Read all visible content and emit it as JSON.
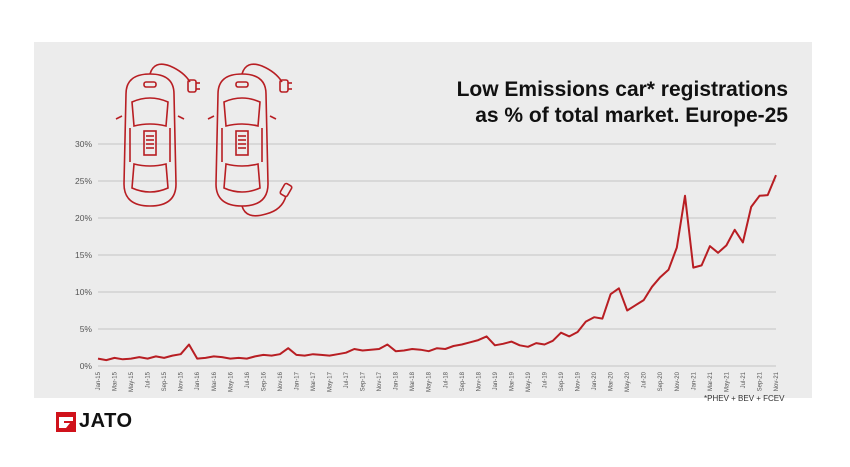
{
  "chart_data": {
    "type": "line",
    "title_line1": "Low Emissions car* registrations",
    "title_line2": "as % of total market. Europe-25",
    "footnote": "*PHEV + BEV + FCEV",
    "ylim": [
      0,
      30
    ],
    "y_ticks": [
      "0%",
      "5%",
      "10%",
      "15%",
      "20%",
      "25%",
      "30%"
    ],
    "grid": true,
    "line_color": "#b81e23",
    "x_tick_labels": [
      "Jan-15",
      "Mar-15",
      "May-15",
      "Jul-15",
      "Sep-15",
      "Nov-15",
      "Jan-16",
      "Mar-16",
      "May-16",
      "Jul-16",
      "Sep-16",
      "Nov-16",
      "Jan-17",
      "Mar-17",
      "May-17",
      "Jul-17",
      "Sep-17",
      "Nov-17",
      "Jan-18",
      "Mar-18",
      "May-18",
      "Jul-18",
      "Sep-18",
      "Nov-18",
      "Jan-19",
      "Mar-19",
      "May-19",
      "Jul-19",
      "Sep-19",
      "Nov-19",
      "Jan-20",
      "Mar-20",
      "May-20",
      "Jul-20",
      "Sep-20",
      "Nov-20",
      "Jan-21",
      "Mar-21",
      "May-21",
      "Jul-21",
      "Sep-21",
      "Nov-21"
    ],
    "x": [
      "Jan-15",
      "Feb-15",
      "Mar-15",
      "Apr-15",
      "May-15",
      "Jun-15",
      "Jul-15",
      "Aug-15",
      "Sep-15",
      "Oct-15",
      "Nov-15",
      "Dec-15",
      "Jan-16",
      "Feb-16",
      "Mar-16",
      "Apr-16",
      "May-16",
      "Jun-16",
      "Jul-16",
      "Aug-16",
      "Sep-16",
      "Oct-16",
      "Nov-16",
      "Dec-16",
      "Jan-17",
      "Feb-17",
      "Mar-17",
      "Apr-17",
      "May-17",
      "Jun-17",
      "Jul-17",
      "Aug-17",
      "Sep-17",
      "Oct-17",
      "Nov-17",
      "Dec-17",
      "Jan-18",
      "Feb-18",
      "Mar-18",
      "Apr-18",
      "May-18",
      "Jun-18",
      "Jul-18",
      "Aug-18",
      "Sep-18",
      "Oct-18",
      "Nov-18",
      "Dec-18",
      "Jan-19",
      "Feb-19",
      "Mar-19",
      "Apr-19",
      "May-19",
      "Jun-19",
      "Jul-19",
      "Aug-19",
      "Sep-19",
      "Oct-19",
      "Nov-19",
      "Dec-19",
      "Jan-20",
      "Feb-20",
      "Mar-20",
      "Apr-20",
      "May-20",
      "Jun-20",
      "Jul-20",
      "Aug-20",
      "Sep-20",
      "Oct-20",
      "Nov-20",
      "Dec-20",
      "Jan-21",
      "Feb-21",
      "Mar-21",
      "Apr-21",
      "May-21",
      "Jun-21",
      "Jul-21",
      "Aug-21",
      "Sep-21",
      "Oct-21",
      "Nov-21"
    ],
    "values": [
      1.0,
      0.8,
      1.1,
      0.9,
      1.0,
      1.2,
      1.0,
      1.3,
      1.1,
      1.4,
      1.6,
      2.9,
      1.0,
      1.1,
      1.3,
      1.2,
      1.0,
      1.1,
      1.0,
      1.3,
      1.5,
      1.4,
      1.6,
      2.4,
      1.5,
      1.4,
      1.6,
      1.5,
      1.4,
      1.6,
      1.8,
      2.3,
      2.1,
      2.2,
      2.3,
      2.9,
      2.0,
      2.1,
      2.3,
      2.2,
      2.0,
      2.4,
      2.3,
      2.7,
      2.9,
      3.2,
      3.5,
      4.0,
      2.8,
      3.0,
      3.3,
      2.8,
      2.6,
      3.1,
      2.9,
      3.4,
      4.5,
      4.0,
      4.6,
      6.0,
      6.6,
      6.4,
      9.7,
      10.5,
      7.5,
      8.2,
      8.9,
      10.7,
      12.0,
      13.0,
      16.0,
      23.0,
      13.3,
      13.6,
      16.2,
      15.3,
      16.3,
      18.4,
      16.7,
      21.5,
      23.0,
      23.1,
      25.8
    ]
  },
  "logo": {
    "text": "JATO"
  }
}
